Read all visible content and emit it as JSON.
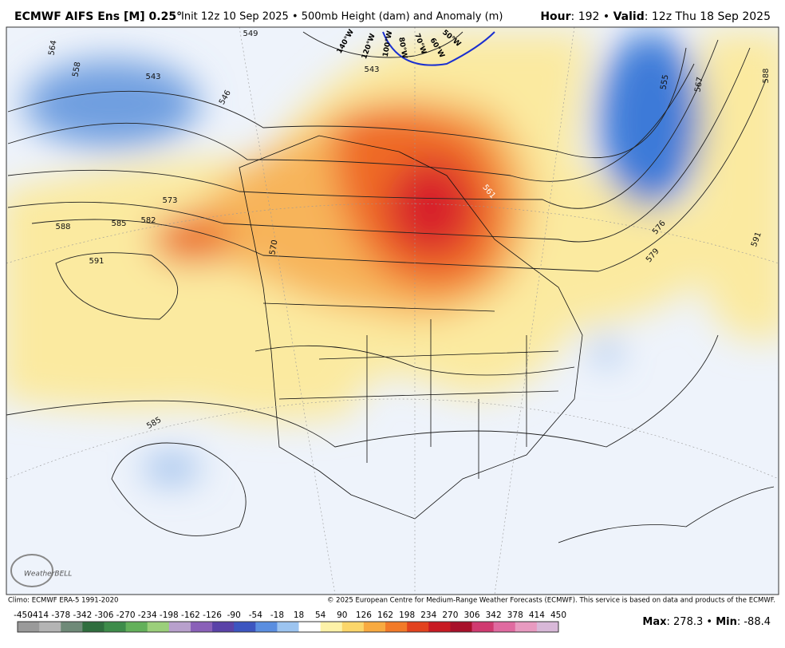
{
  "header": {
    "model": "ECMWF AIFS Ens [M] 0.25°",
    "description": "Init 12z 10 Sep 2025 • 500mb Height (dam) and Anomaly (m)",
    "hour_label": "Hour",
    "hour_value": ": 192 • ",
    "valid_label": "Valid",
    "valid_value": ": 12z Thu 18 Sep 2025"
  },
  "map": {
    "contours": [
      564,
      558,
      543,
      549,
      546,
      543,
      573,
      588,
      585,
      582,
      591,
      570,
      555,
      567,
      588,
      576,
      579,
      591,
      585,
      561
    ],
    "longitudes": [
      "140°W",
      "120°W",
      "100°W",
      "80°W",
      "70°W",
      "60°W",
      "50°W"
    ],
    "logo": "WeatherBELL"
  },
  "footer": {
    "climo": "Climo: ECMWF ERA-5 1991-2020",
    "copyright": "© 2025 European Centre for Medium-Range Weather Forecasts (ECMWF). This service is based on data and products of the ECMWF.",
    "max_label": "Max",
    "max_value": ": 278.3 • ",
    "min_label": "Min",
    "min_value": ": -88.4"
  },
  "colorbar": {
    "ticks": [
      -450,
      -414,
      -378,
      -342,
      -306,
      -270,
      -234,
      -198,
      -162,
      -126,
      -90,
      -54,
      -18,
      18,
      54,
      90,
      126,
      162,
      198,
      234,
      270,
      306,
      342,
      378,
      414,
      450
    ]
  }
}
